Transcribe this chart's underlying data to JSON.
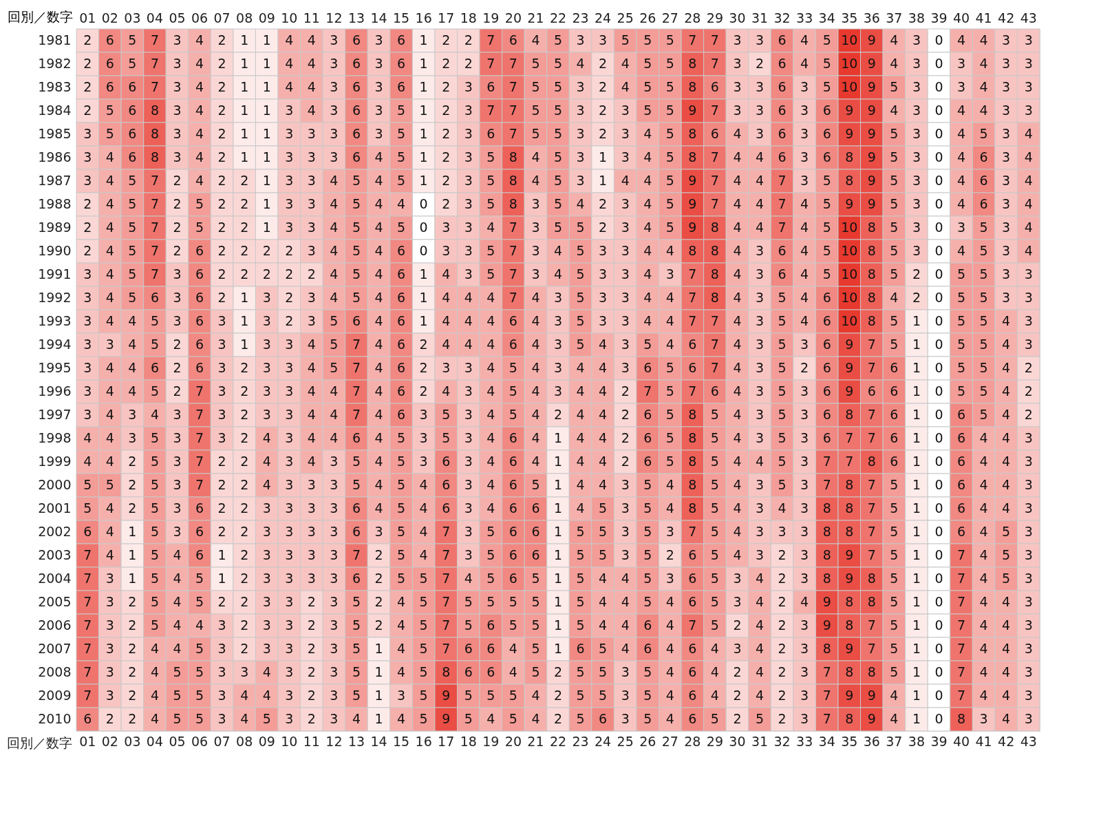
{
  "chart_data": {
    "type": "heatmap",
    "ylabel": "回別／数字",
    "data_labels": true,
    "categories": [
      "01",
      "02",
      "03",
      "04",
      "05",
      "06",
      "07",
      "08",
      "09",
      "10",
      "11",
      "12",
      "13",
      "14",
      "15",
      "16",
      "17",
      "18",
      "19",
      "20",
      "21",
      "22",
      "23",
      "24",
      "25",
      "26",
      "27",
      "28",
      "29",
      "30",
      "31",
      "32",
      "33",
      "34",
      "35",
      "36",
      "37",
      "38",
      "39",
      "40",
      "41",
      "42",
      "43"
    ],
    "y_categories": [
      "1981",
      "1982",
      "1983",
      "1984",
      "1985",
      "1986",
      "1987",
      "1988",
      "1989",
      "1990",
      "1991",
      "1992",
      "1993",
      "1994",
      "1995",
      "1996",
      "1997",
      "1998",
      "1999",
      "2000",
      "2001",
      "2002",
      "2003",
      "2004",
      "2005",
      "2006",
      "2007",
      "2008",
      "2009",
      "2010"
    ],
    "cells": [
      [
        2,
        6,
        5,
        7,
        3,
        4,
        2,
        1,
        1,
        4,
        4,
        3,
        6,
        3,
        6,
        1,
        2,
        2,
        7,
        6,
        4,
        5,
        3,
        3,
        5,
        5,
        5,
        7,
        7,
        3,
        3,
        6,
        4,
        5,
        10,
        9,
        4,
        3,
        0,
        4,
        4,
        3,
        3
      ],
      [
        2,
        6,
        5,
        7,
        3,
        4,
        2,
        1,
        1,
        4,
        4,
        3,
        6,
        3,
        6,
        1,
        2,
        2,
        7,
        7,
        5,
        5,
        4,
        2,
        4,
        5,
        5,
        8,
        7,
        3,
        2,
        6,
        4,
        5,
        10,
        9,
        4,
        3,
        0,
        3,
        4,
        3,
        3
      ],
      [
        2,
        6,
        6,
        7,
        3,
        4,
        2,
        1,
        1,
        4,
        4,
        3,
        6,
        3,
        6,
        1,
        2,
        3,
        6,
        7,
        5,
        5,
        3,
        2,
        4,
        5,
        5,
        8,
        6,
        3,
        3,
        6,
        3,
        5,
        10,
        9,
        5,
        3,
        0,
        3,
        4,
        3,
        3
      ],
      [
        2,
        5,
        6,
        8,
        3,
        4,
        2,
        1,
        1,
        3,
        4,
        3,
        6,
        3,
        5,
        1,
        2,
        3,
        7,
        7,
        5,
        5,
        3,
        2,
        3,
        5,
        5,
        9,
        7,
        3,
        3,
        6,
        3,
        6,
        9,
        9,
        4,
        3,
        0,
        4,
        4,
        3,
        3
      ],
      [
        3,
        5,
        6,
        8,
        3,
        4,
        2,
        1,
        1,
        3,
        3,
        3,
        6,
        3,
        5,
        1,
        2,
        3,
        6,
        7,
        5,
        5,
        3,
        2,
        3,
        4,
        5,
        8,
        6,
        4,
        3,
        6,
        3,
        6,
        9,
        9,
        5,
        3,
        0,
        4,
        5,
        3,
        4
      ],
      [
        3,
        4,
        6,
        8,
        3,
        4,
        2,
        1,
        1,
        3,
        3,
        3,
        6,
        4,
        5,
        1,
        2,
        3,
        5,
        8,
        4,
        5,
        3,
        1,
        3,
        4,
        5,
        8,
        7,
        4,
        4,
        6,
        3,
        6,
        8,
        9,
        5,
        3,
        0,
        4,
        6,
        3,
        4
      ],
      [
        3,
        4,
        5,
        7,
        2,
        4,
        2,
        2,
        1,
        3,
        3,
        4,
        5,
        4,
        5,
        1,
        2,
        3,
        5,
        8,
        4,
        5,
        3,
        1,
        4,
        4,
        5,
        9,
        7,
        4,
        4,
        7,
        3,
        5,
        8,
        9,
        5,
        3,
        0,
        4,
        6,
        3,
        4
      ],
      [
        2,
        4,
        5,
        7,
        2,
        5,
        2,
        2,
        1,
        3,
        3,
        4,
        5,
        4,
        4,
        0,
        2,
        3,
        5,
        8,
        3,
        5,
        4,
        2,
        3,
        4,
        5,
        9,
        7,
        4,
        4,
        7,
        4,
        5,
        9,
        9,
        5,
        3,
        0,
        4,
        6,
        3,
        4
      ],
      [
        2,
        4,
        5,
        7,
        2,
        5,
        2,
        2,
        1,
        3,
        3,
        4,
        5,
        4,
        5,
        0,
        3,
        3,
        4,
        7,
        3,
        5,
        5,
        2,
        3,
        4,
        5,
        9,
        8,
        4,
        4,
        7,
        4,
        5,
        10,
        8,
        5,
        3,
        0,
        3,
        5,
        3,
        4
      ],
      [
        2,
        4,
        5,
        7,
        2,
        6,
        2,
        2,
        2,
        2,
        3,
        4,
        5,
        4,
        6,
        0,
        3,
        3,
        5,
        7,
        3,
        4,
        5,
        3,
        3,
        4,
        4,
        8,
        8,
        4,
        3,
        6,
        4,
        5,
        10,
        8,
        5,
        3,
        0,
        4,
        5,
        3,
        4
      ],
      [
        3,
        4,
        5,
        7,
        3,
        6,
        2,
        2,
        2,
        2,
        2,
        4,
        5,
        4,
        6,
        1,
        4,
        3,
        5,
        7,
        3,
        4,
        5,
        3,
        3,
        4,
        3,
        7,
        8,
        4,
        3,
        6,
        4,
        5,
        10,
        8,
        5,
        2,
        0,
        5,
        5,
        3,
        3
      ],
      [
        3,
        4,
        5,
        6,
        3,
        6,
        2,
        1,
        3,
        2,
        3,
        4,
        5,
        4,
        6,
        1,
        4,
        4,
        4,
        7,
        4,
        3,
        5,
        3,
        3,
        4,
        4,
        7,
        8,
        4,
        3,
        5,
        4,
        6,
        10,
        8,
        4,
        2,
        0,
        5,
        5,
        3,
        3
      ],
      [
        3,
        4,
        4,
        5,
        3,
        6,
        3,
        1,
        3,
        2,
        3,
        5,
        6,
        4,
        6,
        1,
        4,
        4,
        4,
        6,
        4,
        3,
        5,
        3,
        3,
        4,
        4,
        7,
        7,
        4,
        3,
        5,
        4,
        6,
        10,
        8,
        5,
        1,
        0,
        5,
        5,
        4,
        3
      ],
      [
        3,
        3,
        4,
        5,
        2,
        6,
        3,
        1,
        3,
        3,
        4,
        5,
        7,
        4,
        6,
        2,
        4,
        4,
        4,
        6,
        4,
        3,
        5,
        4,
        3,
        5,
        4,
        6,
        7,
        4,
        3,
        5,
        3,
        6,
        9,
        7,
        5,
        1,
        0,
        5,
        5,
        4,
        3
      ],
      [
        3,
        4,
        4,
        6,
        2,
        6,
        3,
        2,
        3,
        3,
        4,
        5,
        7,
        4,
        6,
        2,
        3,
        3,
        4,
        5,
        4,
        3,
        4,
        4,
        3,
        6,
        5,
        6,
        7,
        4,
        3,
        5,
        2,
        6,
        9,
        7,
        6,
        1,
        0,
        5,
        5,
        4,
        2
      ],
      [
        3,
        4,
        4,
        5,
        2,
        7,
        3,
        2,
        3,
        3,
        4,
        4,
        7,
        4,
        6,
        2,
        4,
        3,
        4,
        5,
        4,
        3,
        4,
        4,
        2,
        7,
        5,
        7,
        6,
        4,
        3,
        5,
        3,
        6,
        9,
        6,
        6,
        1,
        0,
        5,
        5,
        4,
        2
      ],
      [
        3,
        4,
        3,
        4,
        3,
        7,
        3,
        2,
        3,
        3,
        4,
        4,
        7,
        4,
        6,
        3,
        5,
        3,
        4,
        5,
        4,
        2,
        4,
        4,
        2,
        6,
        5,
        8,
        5,
        4,
        3,
        5,
        3,
        6,
        8,
        7,
        6,
        1,
        0,
        6,
        5,
        4,
        2
      ],
      [
        4,
        4,
        3,
        5,
        3,
        7,
        3,
        2,
        4,
        3,
        4,
        4,
        6,
        4,
        5,
        3,
        5,
        3,
        4,
        6,
        4,
        1,
        4,
        4,
        2,
        6,
        5,
        8,
        5,
        4,
        3,
        5,
        3,
        6,
        7,
        7,
        6,
        1,
        0,
        6,
        4,
        4,
        3
      ],
      [
        4,
        4,
        2,
        5,
        3,
        7,
        2,
        2,
        4,
        3,
        4,
        3,
        5,
        4,
        5,
        3,
        6,
        3,
        4,
        6,
        4,
        1,
        4,
        4,
        2,
        6,
        5,
        8,
        5,
        4,
        4,
        5,
        3,
        7,
        7,
        8,
        6,
        1,
        0,
        6,
        4,
        4,
        3
      ],
      [
        5,
        5,
        2,
        5,
        3,
        7,
        2,
        2,
        4,
        3,
        3,
        3,
        5,
        4,
        5,
        4,
        6,
        3,
        4,
        6,
        5,
        1,
        4,
        4,
        3,
        5,
        4,
        8,
        5,
        4,
        3,
        5,
        3,
        7,
        8,
        7,
        5,
        1,
        0,
        6,
        4,
        4,
        3
      ],
      [
        5,
        4,
        2,
        5,
        3,
        6,
        2,
        2,
        3,
        3,
        3,
        3,
        6,
        4,
        5,
        4,
        6,
        3,
        4,
        6,
        6,
        1,
        4,
        5,
        3,
        5,
        4,
        8,
        5,
        4,
        3,
        4,
        3,
        8,
        8,
        7,
        5,
        1,
        0,
        6,
        4,
        4,
        3
      ],
      [
        6,
        4,
        1,
        5,
        3,
        6,
        2,
        2,
        3,
        3,
        3,
        3,
        6,
        3,
        5,
        4,
        7,
        3,
        5,
        6,
        6,
        1,
        5,
        5,
        3,
        5,
        3,
        7,
        5,
        4,
        3,
        3,
        3,
        8,
        8,
        7,
        5,
        1,
        0,
        6,
        4,
        5,
        3
      ],
      [
        7,
        4,
        1,
        5,
        4,
        6,
        1,
        2,
        3,
        3,
        3,
        3,
        7,
        2,
        5,
        4,
        7,
        3,
        5,
        6,
        6,
        1,
        5,
        5,
        3,
        5,
        2,
        6,
        5,
        4,
        3,
        2,
        3,
        8,
        9,
        7,
        5,
        1,
        0,
        7,
        4,
        5,
        3
      ],
      [
        7,
        3,
        1,
        5,
        4,
        5,
        1,
        2,
        3,
        3,
        3,
        3,
        6,
        2,
        5,
        5,
        7,
        4,
        5,
        6,
        5,
        1,
        5,
        4,
        4,
        5,
        3,
        6,
        5,
        3,
        4,
        2,
        3,
        8,
        9,
        8,
        5,
        1,
        0,
        7,
        4,
        5,
        3
      ],
      [
        7,
        3,
        2,
        5,
        4,
        5,
        2,
        2,
        3,
        3,
        2,
        3,
        5,
        2,
        4,
        5,
        7,
        5,
        5,
        5,
        5,
        1,
        5,
        4,
        4,
        5,
        4,
        6,
        5,
        3,
        4,
        2,
        4,
        9,
        8,
        8,
        5,
        1,
        0,
        7,
        4,
        4,
        3
      ],
      [
        7,
        3,
        2,
        5,
        4,
        4,
        3,
        2,
        3,
        3,
        2,
        3,
        5,
        2,
        4,
        5,
        7,
        5,
        6,
        5,
        5,
        1,
        5,
        4,
        4,
        6,
        4,
        7,
        5,
        2,
        4,
        2,
        3,
        9,
        8,
        7,
        5,
        1,
        0,
        7,
        4,
        4,
        3
      ],
      [
        7,
        3,
        2,
        4,
        4,
        5,
        3,
        2,
        3,
        3,
        2,
        3,
        5,
        1,
        4,
        5,
        7,
        6,
        6,
        4,
        5,
        1,
        6,
        5,
        4,
        6,
        4,
        6,
        4,
        3,
        4,
        2,
        3,
        8,
        9,
        7,
        5,
        1,
        0,
        7,
        4,
        4,
        3
      ],
      [
        7,
        3,
        2,
        4,
        5,
        5,
        3,
        3,
        4,
        3,
        2,
        3,
        5,
        1,
        4,
        5,
        8,
        6,
        6,
        4,
        5,
        2,
        5,
        5,
        3,
        5,
        4,
        6,
        4,
        2,
        4,
        2,
        3,
        7,
        8,
        8,
        5,
        1,
        0,
        7,
        4,
        4,
        3
      ],
      [
        7,
        3,
        2,
        4,
        5,
        5,
        3,
        4,
        4,
        3,
        2,
        3,
        5,
        1,
        3,
        5,
        9,
        5,
        5,
        5,
        4,
        2,
        5,
        5,
        3,
        5,
        4,
        6,
        4,
        2,
        4,
        2,
        3,
        7,
        9,
        9,
        4,
        1,
        0,
        7,
        4,
        4,
        3
      ],
      [
        6,
        2,
        2,
        4,
        5,
        5,
        3,
        4,
        5,
        3,
        2,
        3,
        4,
        1,
        4,
        5,
        9,
        5,
        4,
        5,
        4,
        2,
        5,
        6,
        3,
        5,
        4,
        6,
        5,
        2,
        5,
        2,
        3,
        7,
        8,
        9,
        4,
        1,
        0,
        8,
        3,
        4,
        3
      ]
    ]
  }
}
